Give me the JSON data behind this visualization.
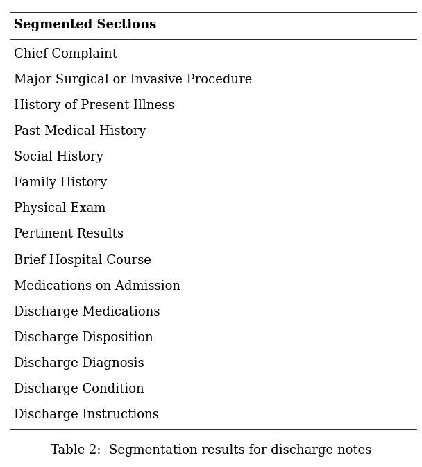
{
  "header": "Segmented Sections",
  "rows": [
    "Chief Complaint",
    "Major Surgical or Invasive Procedure",
    "History of Present Illness",
    "Past Medical History",
    "Social History",
    "Family History",
    "Physical Exam",
    "Pertinent Results",
    "Brief Hospital Course",
    "Medications on Admission",
    "Discharge Medications",
    "Discharge Disposition",
    "Discharge Diagnosis",
    "Discharge Condition",
    "Discharge Instructions"
  ],
  "caption": "Table 2:  Segmentation results for discharge notes",
  "bg_color": "#ffffff",
  "text_color": "#000000",
  "header_fontsize": 13,
  "row_fontsize": 13,
  "caption_fontsize": 13,
  "figsize": [
    6.08,
    6.72
  ],
  "dpi": 100
}
